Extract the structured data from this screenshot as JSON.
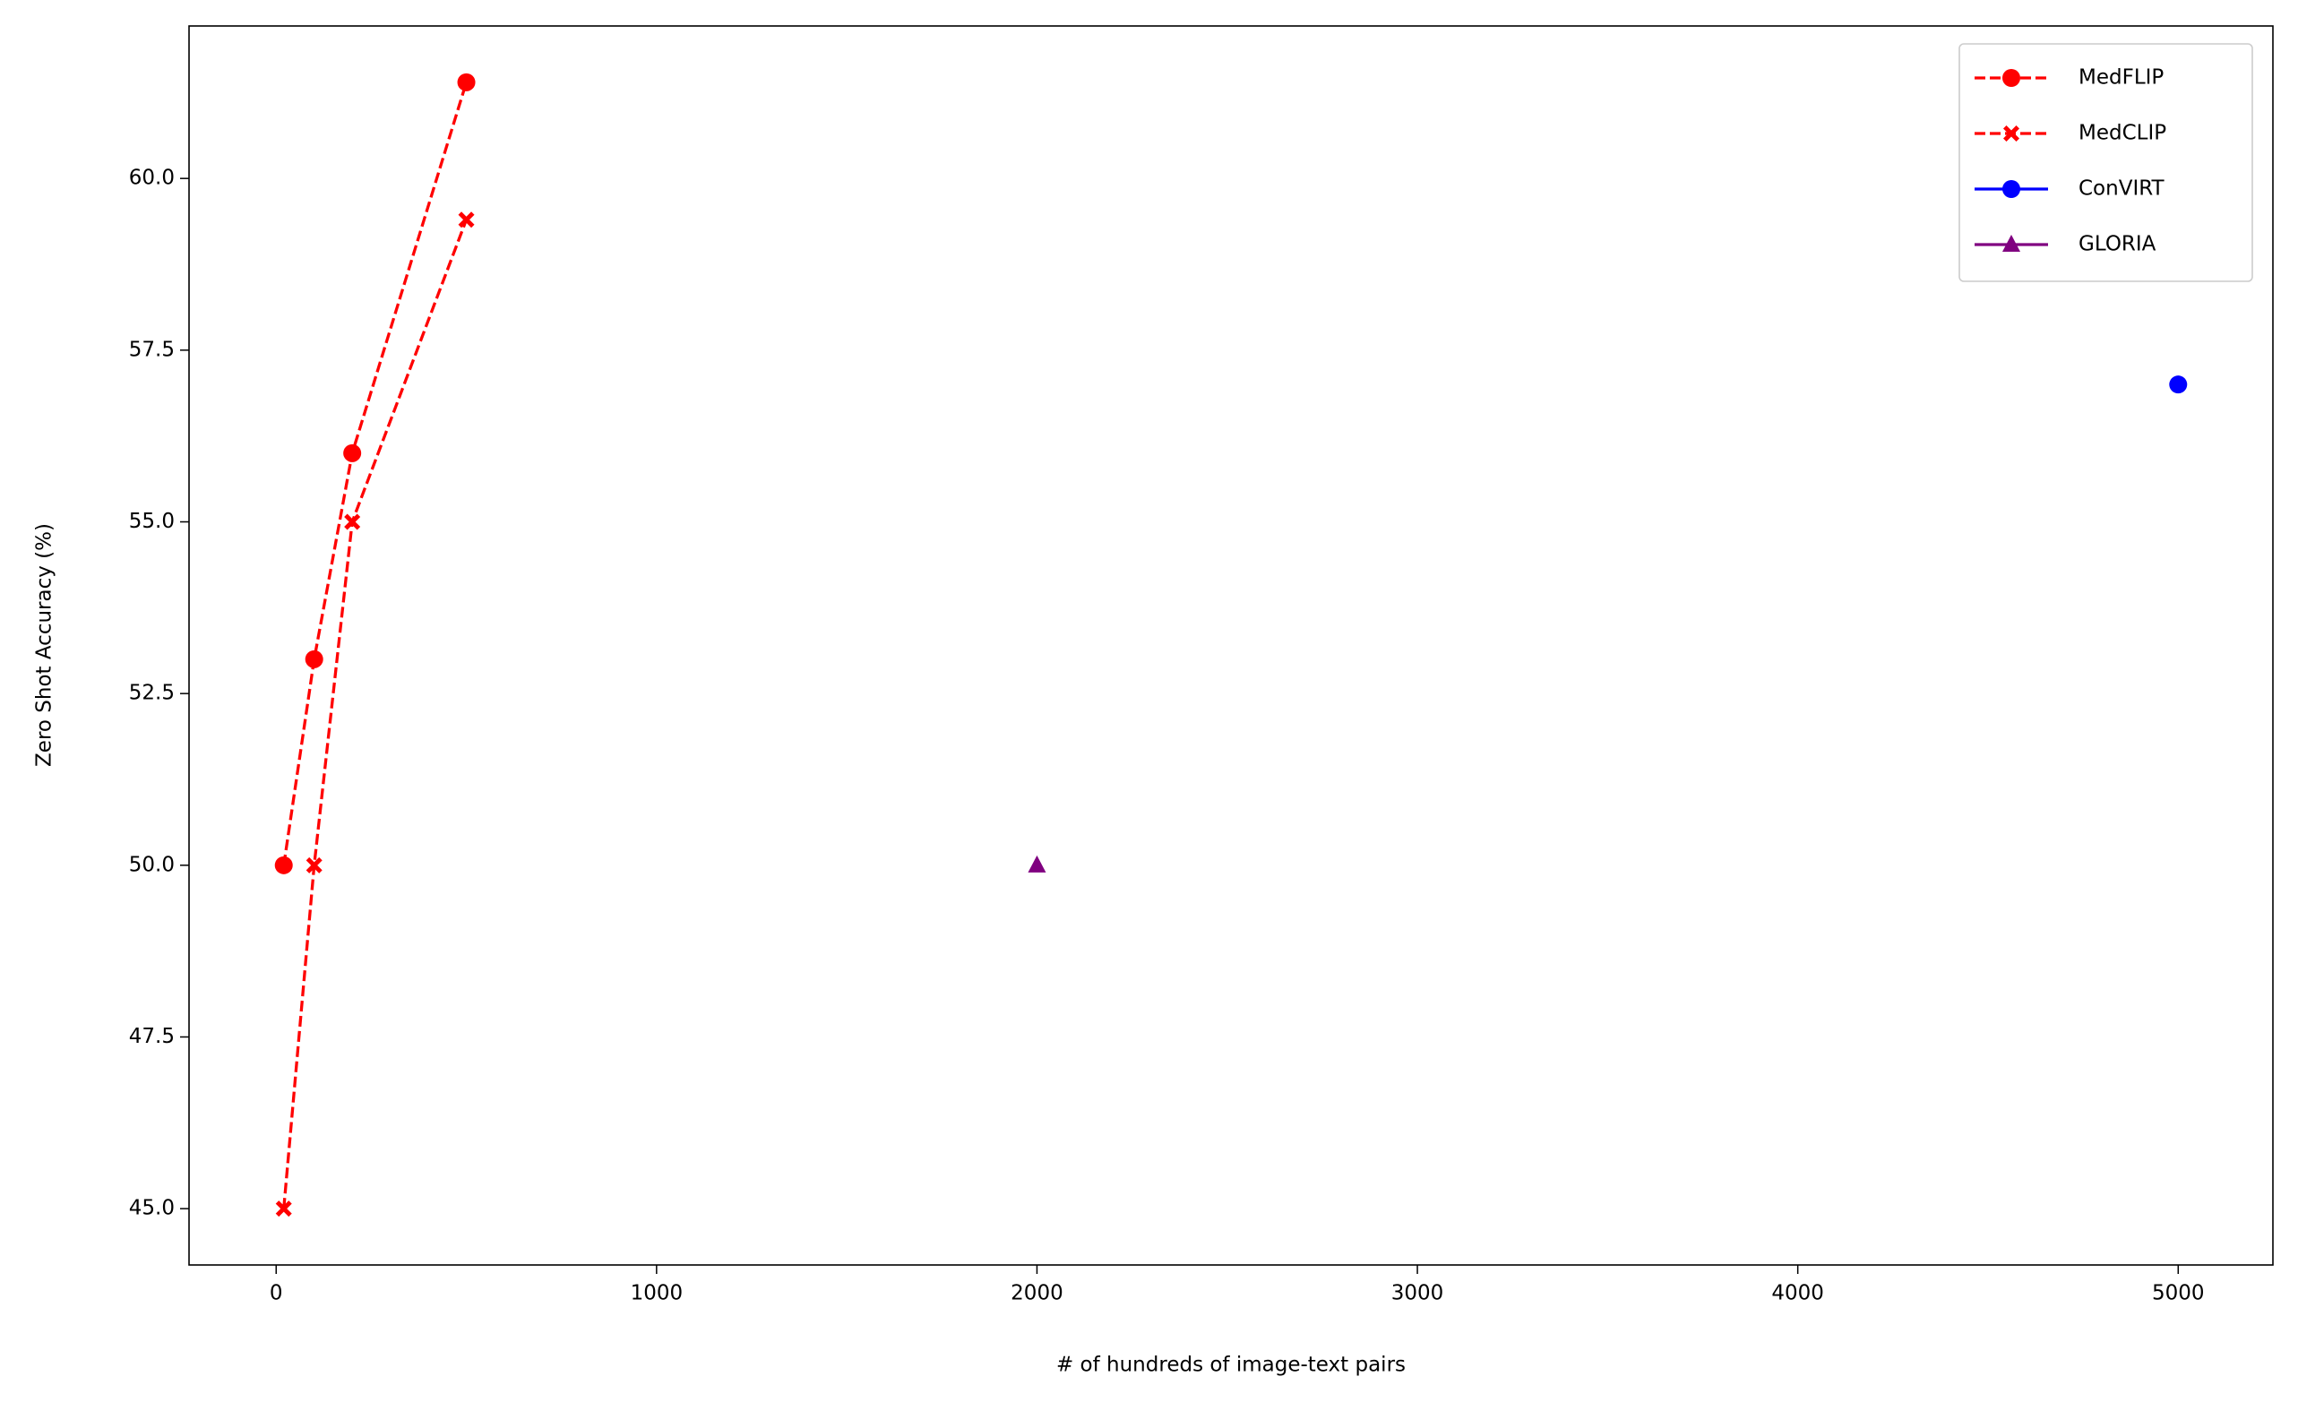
{
  "chart_data": {
    "type": "line",
    "xlabel": "# of hundreds of image-text pairs",
    "ylabel": "Zero Shot Accuracy (%)",
    "xlim": [
      -229,
      5249
    ],
    "ylim": [
      44.18,
      62.22
    ],
    "xticks": [
      0,
      1000,
      2000,
      3000,
      4000,
      5000
    ],
    "yticks": [
      {
        "value": 45,
        "label": "45.0"
      },
      47.5,
      {
        "value": 50,
        "label": "50.0"
      },
      52.5,
      {
        "value": 55,
        "label": "55.0"
      },
      57.5,
      {
        "value": 60,
        "label": "60.0"
      }
    ],
    "legend": "upper right",
    "series": [
      {
        "name": "MedFLIP",
        "color": "#ff0000",
        "marker": "circle",
        "linestyle": "dashed",
        "x": [
          20,
          100,
          200,
          500
        ],
        "values": [
          50,
          53,
          56,
          61.4
        ]
      },
      {
        "name": "MedCLIP",
        "color": "#ff0000",
        "marker": "x",
        "linestyle": "dashed",
        "x": [
          20,
          100,
          200,
          500
        ],
        "values": [
          45,
          50,
          55,
          59.4
        ]
      },
      {
        "name": "ConVIRT",
        "color": "#0000ff",
        "marker": "circle",
        "linestyle": "solid",
        "x": [
          5000
        ],
        "values": [
          57
        ]
      },
      {
        "name": "GLORIA",
        "color": "#800080",
        "marker": "triangle",
        "linestyle": "solid",
        "x": [
          2000
        ],
        "values": [
          50
        ]
      }
    ]
  }
}
